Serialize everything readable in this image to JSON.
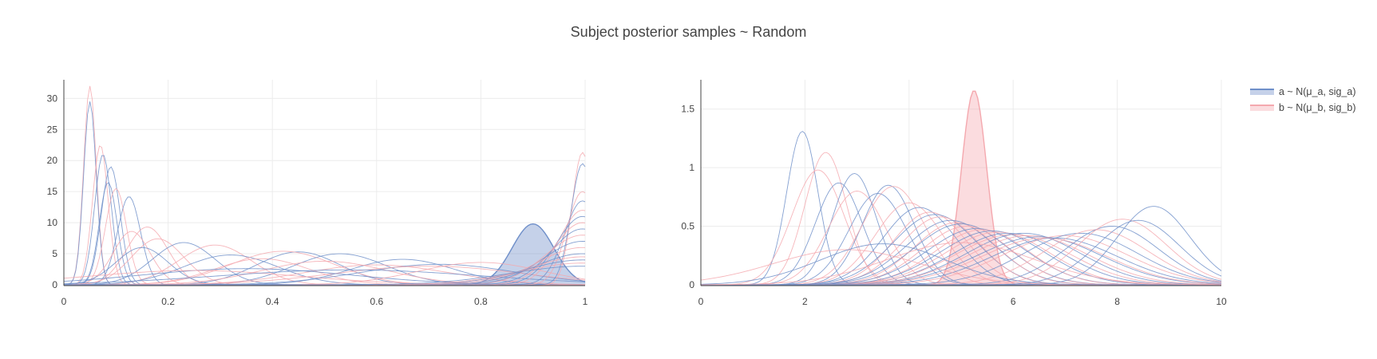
{
  "title": "Subject posterior samples ~ Random",
  "colors": {
    "a_line": "#6f8fc9",
    "a_fill": "rgba(110,140,200,0.40)",
    "b_line": "#f4a8ae",
    "b_fill": "rgba(244,168,174,0.40)",
    "grid": "#ececec",
    "axis": "#444444"
  },
  "legend": [
    {
      "label": "a ~ N(μ_a, sig_a)",
      "series": "a"
    },
    {
      "label": "b ~ N(μ_b, sig_b)",
      "series": "b"
    }
  ],
  "chart_data": [
    {
      "type": "line",
      "panel": "left",
      "xlim": [
        0,
        1
      ],
      "ylim": [
        0,
        33
      ],
      "xticks": [
        "0",
        "0.2",
        "0.4",
        "0.6",
        "0.8",
        "1"
      ],
      "xtick_values": [
        0,
        0.2,
        0.4,
        0.6,
        0.8,
        1
      ],
      "yticks": [
        "0",
        "5",
        "10",
        "15",
        "20",
        "25",
        "30"
      ],
      "ytick_values": [
        0,
        5,
        10,
        15,
        20,
        25,
        30
      ],
      "highlight": {
        "series": "a",
        "center": 0.9,
        "width": 0.04,
        "peak": 9.8
      },
      "curves": [
        {
          "series": "b",
          "center": 0.05,
          "width": 0.012,
          "peak": 32
        },
        {
          "series": "a",
          "center": 0.05,
          "width": 0.012,
          "peak": 29.5
        },
        {
          "series": "b",
          "center": 0.07,
          "width": 0.015,
          "peak": 22.5
        },
        {
          "series": "a",
          "center": 0.075,
          "width": 0.016,
          "peak": 21
        },
        {
          "series": "a",
          "center": 0.09,
          "width": 0.018,
          "peak": 19
        },
        {
          "series": "a",
          "center": 0.085,
          "width": 0.017,
          "peak": 16.5
        },
        {
          "series": "b",
          "center": 0.1,
          "width": 0.02,
          "peak": 15.5
        },
        {
          "series": "a",
          "center": 0.125,
          "width": 0.022,
          "peak": 14.2
        },
        {
          "series": "b",
          "center": 0.16,
          "width": 0.04,
          "peak": 9.3
        },
        {
          "series": "b",
          "center": 0.13,
          "width": 0.035,
          "peak": 8.6
        },
        {
          "series": "b",
          "center": 0.18,
          "width": 0.05,
          "peak": 7.4
        },
        {
          "series": "a",
          "center": 0.15,
          "width": 0.05,
          "peak": 6.0
        },
        {
          "series": "a",
          "center": 0.23,
          "width": 0.06,
          "peak": 6.8
        },
        {
          "series": "b",
          "center": 0.29,
          "width": 0.07,
          "peak": 6.4
        },
        {
          "series": "a",
          "center": 0.32,
          "width": 0.09,
          "peak": 4.8
        },
        {
          "series": "b",
          "center": 0.38,
          "width": 0.09,
          "peak": 4.2
        },
        {
          "series": "a",
          "center": 0.45,
          "width": 0.08,
          "peak": 5.3
        },
        {
          "series": "b",
          "center": 0.42,
          "width": 0.1,
          "peak": 5.4
        },
        {
          "series": "a",
          "center": 0.53,
          "width": 0.09,
          "peak": 5.0
        },
        {
          "series": "b",
          "center": 0.5,
          "width": 0.12,
          "peak": 3.8
        },
        {
          "series": "a",
          "center": 0.65,
          "width": 0.1,
          "peak": 4.1
        },
        {
          "series": "b",
          "center": 0.6,
          "width": 0.14,
          "peak": 3.2
        },
        {
          "series": "a",
          "center": 0.72,
          "width": 0.15,
          "peak": 3.3
        },
        {
          "series": "b",
          "center": 0.7,
          "width": 0.18,
          "peak": 3.0
        },
        {
          "series": "a",
          "center": 0.35,
          "width": 0.2,
          "peak": 2.6
        },
        {
          "series": "b",
          "center": 0.25,
          "width": 0.2,
          "peak": 2.3
        },
        {
          "series": "a",
          "center": 0.55,
          "width": 0.25,
          "peak": 2.4
        },
        {
          "series": "b",
          "center": 0.8,
          "width": 0.12,
          "peak": 3.6
        },
        {
          "series": "b",
          "center": 0.995,
          "width": 0.02,
          "peak": 21.3
        },
        {
          "series": "a",
          "center": 0.995,
          "width": 0.022,
          "peak": 19.5
        },
        {
          "series": "b",
          "center": 0.995,
          "width": 0.03,
          "peak": 15
        },
        {
          "series": "a",
          "center": 0.995,
          "width": 0.035,
          "peak": 13.5
        },
        {
          "series": "b",
          "center": 0.995,
          "width": 0.045,
          "peak": 12
        },
        {
          "series": "a",
          "center": 0.995,
          "width": 0.05,
          "peak": 11
        },
        {
          "series": "b",
          "center": 0.995,
          "width": 0.055,
          "peak": 10
        },
        {
          "series": "a",
          "center": 0.995,
          "width": 0.06,
          "peak": 9
        },
        {
          "series": "b",
          "center": 0.995,
          "width": 0.07,
          "peak": 8
        },
        {
          "series": "a",
          "center": 0.995,
          "width": 0.075,
          "peak": 7
        },
        {
          "series": "b",
          "center": 0.995,
          "width": 0.085,
          "peak": 6
        },
        {
          "series": "a",
          "center": 0.995,
          "width": 0.09,
          "peak": 5
        },
        {
          "series": "b",
          "center": 0.995,
          "width": 0.1,
          "peak": 4.5
        },
        {
          "series": "a",
          "center": 0.995,
          "width": 0.11,
          "peak": 4
        },
        {
          "series": "b",
          "center": 0.995,
          "width": 0.12,
          "peak": 3.5
        },
        {
          "series": "a",
          "center": 0.995,
          "width": 0.14,
          "peak": 3
        }
      ]
    },
    {
      "type": "line",
      "panel": "right",
      "xlim": [
        0,
        10
      ],
      "ylim": [
        0,
        1.75
      ],
      "xticks": [
        "0",
        "2",
        "4",
        "6",
        "8",
        "10"
      ],
      "xtick_values": [
        0,
        2,
        4,
        6,
        8,
        10
      ],
      "yticks": [
        "0",
        "0.5",
        "1",
        "1.5"
      ],
      "ytick_values": [
        0,
        0.5,
        1,
        1.5
      ],
      "highlight": {
        "series": "b",
        "center": 5.25,
        "width": 0.24,
        "peak": 1.66
      },
      "curves": [
        {
          "series": "a",
          "center": 1.95,
          "width": 0.3,
          "peak": 1.31
        },
        {
          "series": "b",
          "center": 2.4,
          "width": 0.4,
          "peak": 1.13
        },
        {
          "series": "b",
          "center": 2.25,
          "width": 0.5,
          "peak": 0.98
        },
        {
          "series": "a",
          "center": 2.95,
          "width": 0.42,
          "peak": 0.95
        },
        {
          "series": "a",
          "center": 2.65,
          "width": 0.45,
          "peak": 0.87
        },
        {
          "series": "b",
          "center": 3.0,
          "width": 0.55,
          "peak": 0.8
        },
        {
          "series": "a",
          "center": 3.6,
          "width": 0.5,
          "peak": 0.85
        },
        {
          "series": "b",
          "center": 3.7,
          "width": 0.6,
          "peak": 0.84
        },
        {
          "series": "a",
          "center": 3.4,
          "width": 0.55,
          "peak": 0.78
        },
        {
          "series": "b",
          "center": 4.0,
          "width": 0.65,
          "peak": 0.7
        },
        {
          "series": "a",
          "center": 4.2,
          "width": 0.7,
          "peak": 0.66
        },
        {
          "series": "b",
          "center": 4.4,
          "width": 0.7,
          "peak": 0.62
        },
        {
          "series": "a",
          "center": 4.5,
          "width": 0.8,
          "peak": 0.6
        },
        {
          "series": "b",
          "center": 4.6,
          "width": 0.75,
          "peak": 0.58
        },
        {
          "series": "a",
          "center": 4.8,
          "width": 0.85,
          "peak": 0.55
        },
        {
          "series": "b",
          "center": 4.9,
          "width": 0.8,
          "peak": 0.53
        },
        {
          "series": "a",
          "center": 5.0,
          "width": 0.9,
          "peak": 0.52
        },
        {
          "series": "b",
          "center": 5.1,
          "width": 0.85,
          "peak": 0.5
        },
        {
          "series": "a",
          "center": 5.3,
          "width": 0.95,
          "peak": 0.48
        },
        {
          "series": "b",
          "center": 5.4,
          "width": 0.9,
          "peak": 0.47
        },
        {
          "series": "a",
          "center": 5.6,
          "width": 1.0,
          "peak": 0.46
        },
        {
          "series": "b",
          "center": 5.7,
          "width": 1.0,
          "peak": 0.45
        },
        {
          "series": "a",
          "center": 5.9,
          "width": 1.05,
          "peak": 0.44
        },
        {
          "series": "b",
          "center": 6.0,
          "width": 1.1,
          "peak": 0.43
        },
        {
          "series": "a",
          "center": 6.2,
          "width": 1.1,
          "peak": 0.44
        },
        {
          "series": "b",
          "center": 6.3,
          "width": 1.15,
          "peak": 0.42
        },
        {
          "series": "a",
          "center": 6.5,
          "width": 1.2,
          "peak": 0.41
        },
        {
          "series": "b",
          "center": 6.6,
          "width": 1.2,
          "peak": 0.4
        },
        {
          "series": "a",
          "center": 6.8,
          "width": 1.2,
          "peak": 0.4
        },
        {
          "series": "b",
          "center": 7.0,
          "width": 1.2,
          "peak": 0.42
        },
        {
          "series": "a",
          "center": 7.3,
          "width": 1.1,
          "peak": 0.44
        },
        {
          "series": "b",
          "center": 7.6,
          "width": 1.0,
          "peak": 0.47
        },
        {
          "series": "a",
          "center": 7.9,
          "width": 0.9,
          "peak": 0.5
        },
        {
          "series": "b",
          "center": 8.1,
          "width": 0.85,
          "peak": 0.56
        },
        {
          "series": "a",
          "center": 8.4,
          "width": 0.8,
          "peak": 0.55
        },
        {
          "series": "a",
          "center": 8.7,
          "width": 0.7,
          "peak": 0.67
        },
        {
          "series": "b",
          "center": 2.8,
          "width": 1.4,
          "peak": 0.3
        },
        {
          "series": "a",
          "center": 3.5,
          "width": 1.2,
          "peak": 0.35
        },
        {
          "series": "b",
          "center": 5.0,
          "width": 1.4,
          "peak": 0.36
        }
      ]
    }
  ]
}
